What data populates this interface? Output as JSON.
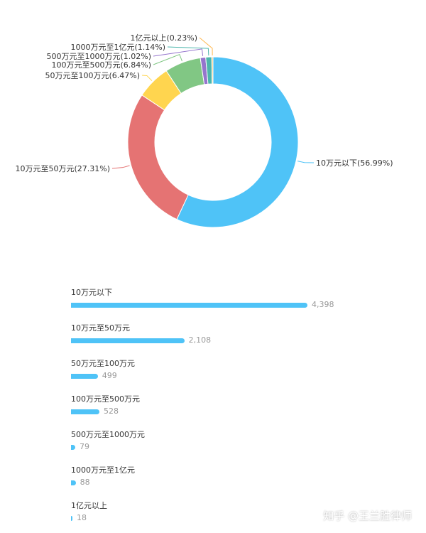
{
  "chart_data": [
    {
      "type": "pie",
      "style": "donut",
      "slices": [
        {
          "label": "10万元以下",
          "percent": 56.99,
          "color": "#4fc3f7"
        },
        {
          "label": "10万元至50万元",
          "percent": 27.31,
          "color": "#e57373"
        },
        {
          "label": "50万元至100万元",
          "percent": 6.47,
          "color": "#ffd54f"
        },
        {
          "label": "100万元至500万元",
          "percent": 6.84,
          "color": "#81c784"
        },
        {
          "label": "500万元至1000万元",
          "percent": 1.02,
          "color": "#9575cd"
        },
        {
          "label": "1000万元至1亿元",
          "percent": 1.14,
          "color": "#4db6ac"
        },
        {
          "label": "1亿元以上",
          "percent": 0.23,
          "color": "#ffb74d"
        }
      ],
      "slice_labels": [
        "10万元以下(56.99%)",
        "10万元至50万元(27.31%)",
        "50万元至100万元(6.47%)",
        "100万元至500万元(6.84%)",
        "500万元至1000万元(1.02%)",
        "1000万元至1亿元(1.14%)",
        "1亿元以上(0.23%)"
      ]
    },
    {
      "type": "bar",
      "orientation": "horizontal",
      "color": "#4fc3f7",
      "categories": [
        "10万元以下",
        "10万元至50万元",
        "50万元至100万元",
        "100万元至500万元",
        "500万元至1000万元",
        "1000万元至1亿元",
        "1亿元以上"
      ],
      "values": [
        4398,
        2108,
        499,
        528,
        79,
        88,
        18
      ],
      "value_labels": [
        "4,398",
        "2,108",
        "499",
        "528",
        "79",
        "88",
        "18"
      ]
    }
  ],
  "watermark": "知乎 @王兰胜律师"
}
